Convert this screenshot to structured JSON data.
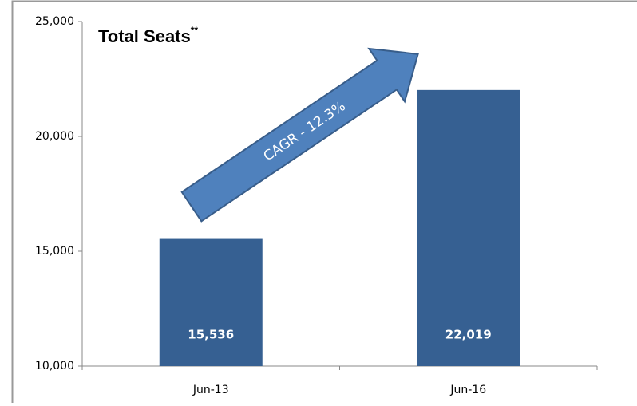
{
  "chart_data": {
    "type": "bar",
    "title": "Total Seats",
    "title_superscript": "**",
    "annotation": "CAGR - 12.3%",
    "categories": [
      "Jun-13",
      "Jun-16"
    ],
    "values": [
      15536,
      22019
    ],
    "value_labels": [
      "15,536",
      "22,019"
    ],
    "color": "#366092",
    "ylim": [
      10000,
      25000
    ],
    "yticks": [
      {
        "value": 10000,
        "label": "10,000"
      },
      {
        "value": 15000,
        "label": "15,000"
      },
      {
        "value": 20000,
        "label": "20,000"
      },
      {
        "value": 25000,
        "label": "25,000"
      }
    ],
    "grid": false
  }
}
